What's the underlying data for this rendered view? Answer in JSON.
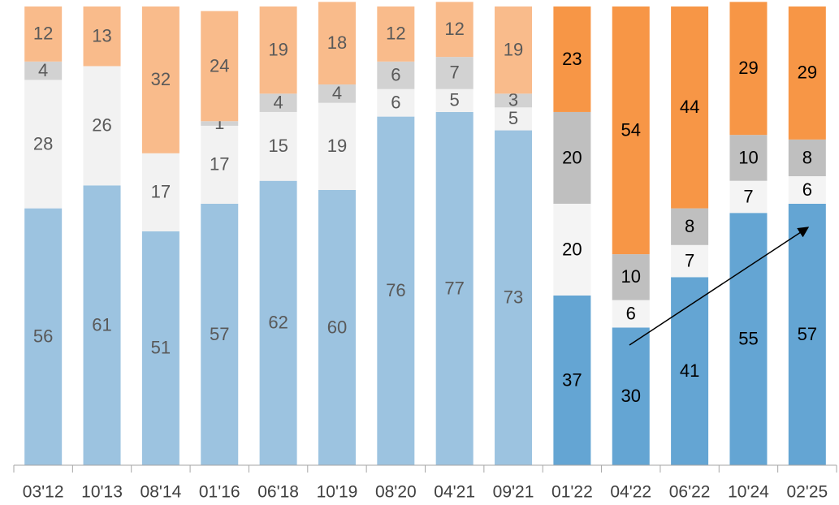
{
  "chart_data": {
    "type": "stacked-bar",
    "categories": [
      "03'12",
      "10'13",
      "08'14",
      "01'16",
      "06'18",
      "10'19",
      "08'20",
      "04'21",
      "09'21",
      "01'22",
      "04'22",
      "06'22",
      "10'24",
      "02'25"
    ],
    "series": [
      {
        "values": [
          56,
          61,
          51,
          57,
          62,
          60,
          76,
          77,
          73,
          37,
          30,
          41,
          55,
          57
        ],
        "colors": [
          "#9cc3e0",
          "#9cc3e0",
          "#9cc3e0",
          "#9cc3e0",
          "#9cc3e0",
          "#9cc3e0",
          "#9cc3e0",
          "#9cc3e0",
          "#9cc3e0",
          "#64a5d3",
          "#64a5d3",
          "#64a5d3",
          "#64a5d3",
          "#64a5d3"
        ]
      },
      {
        "values": [
          28,
          26,
          17,
          17,
          15,
          19,
          6,
          5,
          5,
          20,
          6,
          7,
          7,
          6
        ],
        "colors": [
          "#f2f2f2",
          "#f2f2f2",
          "#f2f2f2",
          "#f2f2f2",
          "#f2f2f2",
          "#f2f2f2",
          "#f2f2f2",
          "#f2f2f2",
          "#f2f2f2",
          "#f4f4f4",
          "#f4f4f4",
          "#f4f4f4",
          "#f4f4f4",
          "#f4f4f4"
        ]
      },
      {
        "values": [
          4,
          null,
          null,
          1,
          4,
          4,
          6,
          7,
          3,
          20,
          10,
          8,
          10,
          8
        ],
        "colors": [
          "#d2d2d2",
          "#d2d2d2",
          "#d2d2d2",
          "#d2d2d2",
          "#d2d2d2",
          "#d2d2d2",
          "#d2d2d2",
          "#d2d2d2",
          "#d2d2d2",
          "#bfbfbf",
          "#bfbfbf",
          "#bfbfbf",
          "#bfbfbf",
          "#bfbfbf"
        ]
      },
      {
        "values": [
          12,
          13,
          32,
          24,
          19,
          18,
          12,
          12,
          19,
          23,
          54,
          44,
          29,
          29
        ],
        "colors": [
          "#f9bb8b",
          "#f9bb8b",
          "#f9bb8b",
          "#f9bb8b",
          "#f9bb8b",
          "#f9bb8b",
          "#f9bb8b",
          "#f9bb8b",
          "#f9bb8b",
          "#f79646",
          "#f79646",
          "#f79646",
          "#f79646",
          "#f79646"
        ]
      }
    ],
    "label_colors": [
      "#595959",
      "#595959",
      "#595959",
      "#595959",
      "#595959",
      "#595959",
      "#595959",
      "#595959",
      "#595959",
      "#000000",
      "#000000",
      "#000000",
      "#000000",
      "#000000"
    ],
    "ylim": [
      0,
      100
    ]
  }
}
